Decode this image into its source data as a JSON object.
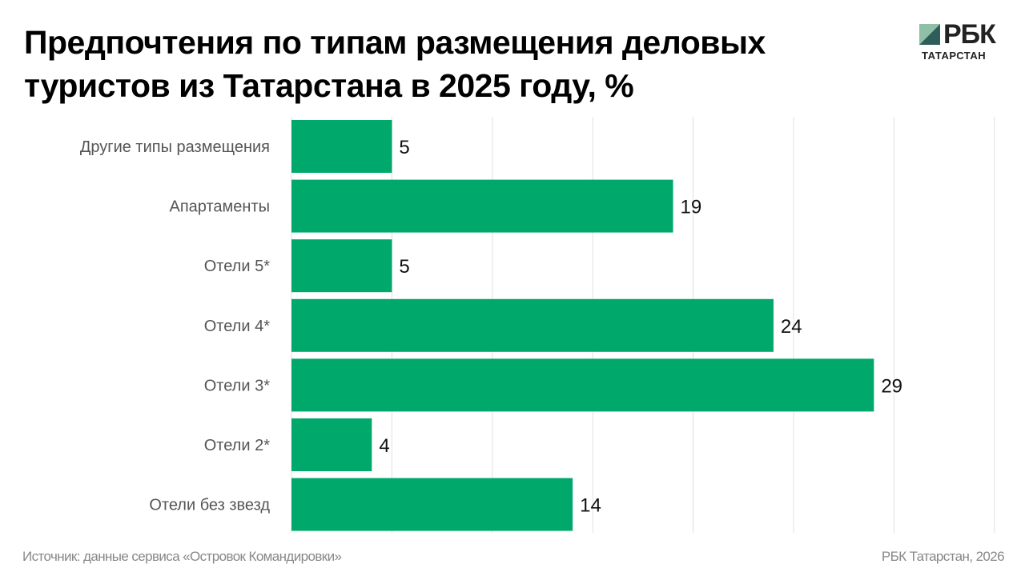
{
  "title": "Предпочтения по типам размещения деловых туристов из Татарстана в 2025 году, %",
  "logo": {
    "main": "РБК",
    "sub": "ТАТАРСТАН"
  },
  "footer": {
    "source": "Источник: данные сервиса «Островок Командировки»",
    "credit": "РБК Татарстан, 2026"
  },
  "colors": {
    "bar": "#00a86b",
    "grid": "#e0e0e0"
  },
  "chart_data": {
    "type": "bar",
    "orientation": "horizontal",
    "title": "Предпочтения по типам размещения деловых туристов из Татарстана в 2025 году, %",
    "categories": [
      "Другие типы размещения",
      "Апартаменты",
      "Отели 5*",
      "Отели 4*",
      "Отели 3*",
      "Отели 2*",
      "Отели без звезд"
    ],
    "values": [
      5,
      19,
      5,
      24,
      29,
      4,
      14
    ],
    "xlim": [
      0,
      35
    ],
    "grid_step": 5,
    "grid": true,
    "xlabel": "",
    "ylabel": ""
  }
}
